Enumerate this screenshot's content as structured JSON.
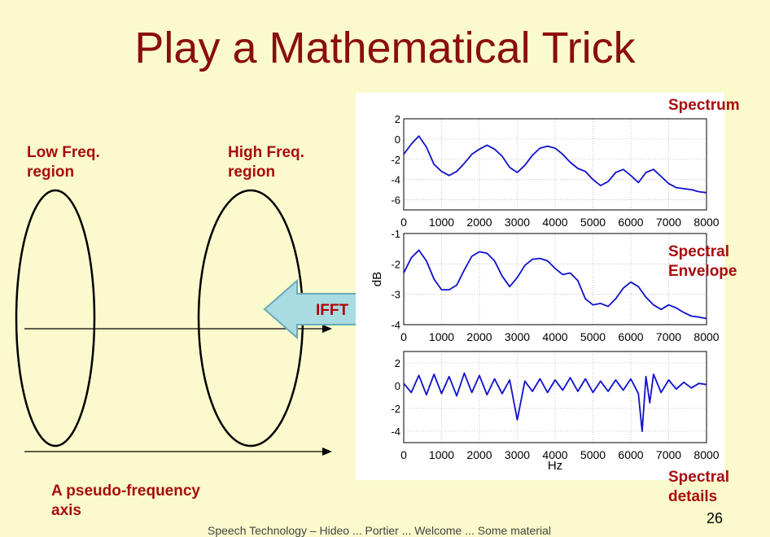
{
  "slide": {
    "title": "Play a Mathematical Trick",
    "low_freq_label_line1": "Low Freq.",
    "low_freq_label_line2": "region",
    "high_freq_label_line1": "High Freq.",
    "high_freq_label_line2": "region",
    "axis_label_line1": "A pseudo-frequency",
    "axis_label_line2": "axis",
    "ifft_label": "IFFT",
    "spectrum_label": "Spectrum",
    "envelope_label_line1": "Spectral",
    "envelope_label_line2": "Envelope",
    "details_label_line1": "Spectral",
    "details_label_line2": "details",
    "page_number": "26",
    "footer": "Speech Technology – Hideo ... Portier ... Welcome ... Some material",
    "colors": {
      "background": "#fafacc",
      "title": "#8b0d0d",
      "label": "#a80d0d",
      "arrow_fill": "#a9dbe3",
      "arrow_stroke": "#6aaab8",
      "trace": "#1010cc"
    }
  },
  "chart_data": [
    {
      "type": "line",
      "title": "",
      "xlabel": "",
      "ylabel": "",
      "xlim": [
        0,
        8000
      ],
      "ylim": [
        -7,
        2
      ],
      "xticks": [
        "0",
        "1000",
        "2000",
        "3000",
        "4000",
        "5000",
        "6000",
        "7000",
        "8000"
      ],
      "yticks": [
        "2",
        "0",
        "-2",
        "-4",
        "-6"
      ],
      "grid": true,
      "x": [
        0,
        200,
        400,
        600,
        800,
        1000,
        1200,
        1400,
        1600,
        1800,
        2000,
        2200,
        2400,
        2600,
        2800,
        3000,
        3200,
        3400,
        3600,
        3800,
        4000,
        4200,
        4400,
        4600,
        4800,
        5000,
        5200,
        5400,
        5600,
        5800,
        6000,
        6200,
        6400,
        6600,
        6800,
        7000,
        7200,
        7400,
        7600,
        7800,
        8000
      ],
      "values": [
        -1.5,
        -0.5,
        0.3,
        -0.8,
        -2.5,
        -3.2,
        -3.6,
        -3.2,
        -2.4,
        -1.5,
        -1.0,
        -0.6,
        -1.0,
        -1.7,
        -2.8,
        -3.3,
        -2.6,
        -1.6,
        -0.9,
        -0.7,
        -0.9,
        -1.5,
        -2.3,
        -2.9,
        -3.2,
        -4.0,
        -4.6,
        -4.2,
        -3.3,
        -3.0,
        -3.6,
        -4.3,
        -3.3,
        -3.0,
        -3.7,
        -4.4,
        -4.8,
        -4.9,
        -5.0,
        -5.2,
        -5.3
      ]
    },
    {
      "type": "line",
      "title": "",
      "xlabel": "",
      "ylabel": "dB",
      "xlim": [
        0,
        8000
      ],
      "ylim": [
        -4,
        -1
      ],
      "xticks": [
        "0",
        "1000",
        "2000",
        "3000",
        "4000",
        "5000",
        "6000",
        "7000",
        "8000"
      ],
      "yticks": [
        "-1",
        "-2",
        "-3",
        "-4"
      ],
      "grid": true,
      "x": [
        0,
        200,
        400,
        600,
        800,
        1000,
        1200,
        1400,
        1600,
        1800,
        2000,
        2200,
        2400,
        2600,
        2800,
        3000,
        3200,
        3400,
        3600,
        3800,
        4000,
        4200,
        4400,
        4600,
        4800,
        5000,
        5200,
        5400,
        5600,
        5800,
        6000,
        6200,
        6400,
        6600,
        6800,
        7000,
        7200,
        7400,
        7600,
        7800,
        8000
      ],
      "values": [
        -2.3,
        -1.8,
        -1.55,
        -1.9,
        -2.5,
        -2.85,
        -2.85,
        -2.7,
        -2.2,
        -1.75,
        -1.6,
        -1.65,
        -1.9,
        -2.4,
        -2.75,
        -2.45,
        -2.05,
        -1.85,
        -1.82,
        -1.9,
        -2.15,
        -2.35,
        -2.3,
        -2.55,
        -3.15,
        -3.35,
        -3.3,
        -3.4,
        -3.15,
        -2.8,
        -2.6,
        -2.75,
        -3.1,
        -3.35,
        -3.5,
        -3.35,
        -3.45,
        -3.6,
        -3.72,
        -3.75,
        -3.8
      ]
    },
    {
      "type": "line",
      "title": "",
      "xlabel": "Hz",
      "ylabel": "",
      "xlim": [
        0,
        8000
      ],
      "ylim": [
        -5,
        3
      ],
      "xticks": [
        "0",
        "1000",
        "2000",
        "3000",
        "4000",
        "5000",
        "6000",
        "7000",
        "8000"
      ],
      "yticks": [
        "2",
        "0",
        "-2",
        "-4"
      ],
      "grid": true,
      "x": [
        0,
        200,
        400,
        600,
        800,
        1000,
        1200,
        1400,
        1600,
        1800,
        2000,
        2200,
        2400,
        2600,
        2800,
        3000,
        3200,
        3400,
        3600,
        3800,
        4000,
        4200,
        4400,
        4600,
        4800,
        5000,
        5200,
        5400,
        5600,
        5800,
        6000,
        6200,
        6300,
        6400,
        6500,
        6600,
        6800,
        7000,
        7200,
        7400,
        7600,
        7800,
        8000
      ],
      "values": [
        0.2,
        -0.6,
        0.9,
        -0.8,
        1.0,
        -0.7,
        0.8,
        -0.9,
        1.1,
        -0.6,
        0.9,
        -0.8,
        0.6,
        -0.7,
        0.5,
        -3.0,
        0.4,
        -0.5,
        0.6,
        -0.6,
        0.5,
        -0.4,
        0.7,
        -0.5,
        0.6,
        -0.6,
        0.4,
        -0.5,
        0.5,
        -0.4,
        0.6,
        -0.7,
        -4.0,
        0.8,
        -1.5,
        1.0,
        -0.6,
        0.5,
        -0.3,
        0.3,
        -0.2,
        0.2,
        0.1
      ]
    }
  ]
}
